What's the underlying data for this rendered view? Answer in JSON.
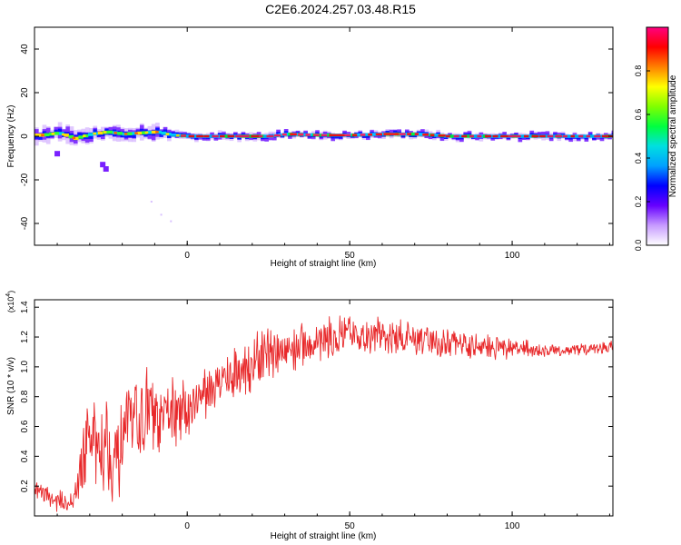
{
  "chart_data": [
    {
      "type": "heatmap",
      "title": "C2E6.2024.257.03.48.R15",
      "xlabel": "Height of straight line (km)",
      "ylabel": "Frequency (Hz)",
      "xlim": [
        -47,
        131
      ],
      "ylim": [
        -50,
        50
      ],
      "xticks": [
        "0",
        "50",
        "100"
      ],
      "yticks": [
        "40",
        "20",
        "0",
        "-20",
        "-40"
      ],
      "colorbar": {
        "label": "Normalized spectral amplitude",
        "range": [
          0,
          1
        ],
        "ticks": [
          "0.0",
          "0.2",
          "0.4",
          "0.6",
          "0.8"
        ],
        "colors": [
          "#ffffff",
          "#c79bff",
          "#6600ff",
          "#0000ff",
          "#00a0ff",
          "#00e0e0",
          "#00ff40",
          "#80ff00",
          "#ffff00",
          "#ff8000",
          "#ff0000",
          "#ff0080"
        ]
      },
      "ridge": [
        {
          "x": -45,
          "y": 0.5
        },
        {
          "x": -40,
          "y": 1.5
        },
        {
          "x": -35,
          "y": -1
        },
        {
          "x": -30,
          "y": 1
        },
        {
          "x": -25,
          "y": 2
        },
        {
          "x": -20,
          "y": 1
        },
        {
          "x": -15,
          "y": 1.5
        },
        {
          "x": -10,
          "y": 2
        },
        {
          "x": -5,
          "y": 0.5
        },
        {
          "x": 0,
          "y": 0
        },
        {
          "x": 25,
          "y": 0
        },
        {
          "x": 30,
          "y": 1
        },
        {
          "x": 40,
          "y": 0.5
        },
        {
          "x": 50,
          "y": 0.5
        },
        {
          "x": 60,
          "y": 1
        },
        {
          "x": 70,
          "y": 1
        },
        {
          "x": 80,
          "y": 0
        },
        {
          "x": 100,
          "y": 0
        },
        {
          "x": 131,
          "y": 0
        }
      ],
      "outliers": [
        {
          "x": -25,
          "y": -15
        },
        {
          "x": -26,
          "y": -13
        },
        {
          "x": -40,
          "y": -8
        },
        {
          "x": -11,
          "y": -30
        },
        {
          "x": -8,
          "y": -36
        },
        {
          "x": -5,
          "y": -39
        }
      ]
    },
    {
      "type": "line",
      "xlabel": "Height of straight line (km)",
      "ylabel": "SNR (10 * v/v)",
      "y_exponent_label": "(x10",
      "y_exponent": "4",
      "y_exponent_close": ")",
      "xlim": [
        -47,
        131
      ],
      "ylim": [
        0,
        14500
      ],
      "xticks": [
        "0",
        "50",
        "100"
      ],
      "yticks": [
        "0.2",
        "0.4",
        "0.6",
        "0.8",
        "1.0",
        "1.2",
        "1.4"
      ],
      "color": "#e8282a",
      "series": [
        {
          "x": [
            -47,
            -44,
            -41,
            -38,
            -35,
            -33,
            -31,
            -29,
            -27,
            -25,
            -23,
            -21,
            -19,
            -17,
            -15,
            -13,
            -11,
            -9,
            -7,
            -5,
            -3,
            -1,
            1,
            3,
            5,
            7,
            9,
            11,
            13,
            15,
            17,
            19,
            21,
            23,
            25,
            27,
            29,
            31,
            33,
            35,
            37,
            39,
            41,
            43,
            45,
            47,
            50,
            53,
            56,
            59,
            62,
            65,
            68,
            71,
            74,
            77,
            80,
            83,
            86,
            89,
            92,
            95,
            98,
            101,
            104,
            107,
            110,
            113,
            116,
            119,
            122,
            125,
            128,
            131
          ],
          "mean": [
            1800,
            1500,
            1000,
            1000,
            900,
            3000,
            4800,
            5000,
            4500,
            6000,
            3500,
            4000,
            5500,
            6000,
            6500,
            7000,
            7000,
            6000,
            6500,
            7500,
            6500,
            7000,
            7500,
            8000,
            8000,
            8500,
            9000,
            9000,
            9500,
            9500,
            10000,
            10000,
            10300,
            10500,
            10800,
            10800,
            11000,
            11200,
            11300,
            11500,
            11600,
            11600,
            11700,
            11800,
            11800,
            11900,
            12000,
            12000,
            12000,
            12000,
            12000,
            11900,
            11900,
            11800,
            11700,
            11600,
            11600,
            11500,
            11500,
            11400,
            11400,
            11300,
            11300,
            11200,
            11200,
            11100,
            11100,
            11100,
            11100,
            11100,
            11200,
            11200,
            11300,
            11400
          ],
          "noise": [
            600,
            600,
            600,
            700,
            700,
            2000,
            3000,
            3000,
            3500,
            3500,
            2500,
            2500,
            2500,
            2500,
            2500,
            2500,
            3000,
            2000,
            2000,
            2000,
            2000,
            2000,
            1800,
            1800,
            1800,
            1600,
            1600,
            1600,
            1600,
            1600,
            1800,
            1800,
            1800,
            1800,
            1800,
            1800,
            1600,
            1600,
            1600,
            1500,
            1500,
            1500,
            1500,
            1400,
            1400,
            1400,
            1300,
            1300,
            1300,
            1300,
            1200,
            1200,
            1200,
            1100,
            1100,
            1000,
            1000,
            900,
            900,
            800,
            800,
            700,
            700,
            600,
            600,
            500,
            500,
            450,
            400,
            400,
            400,
            400,
            400,
            400
          ]
        }
      ]
    }
  ]
}
